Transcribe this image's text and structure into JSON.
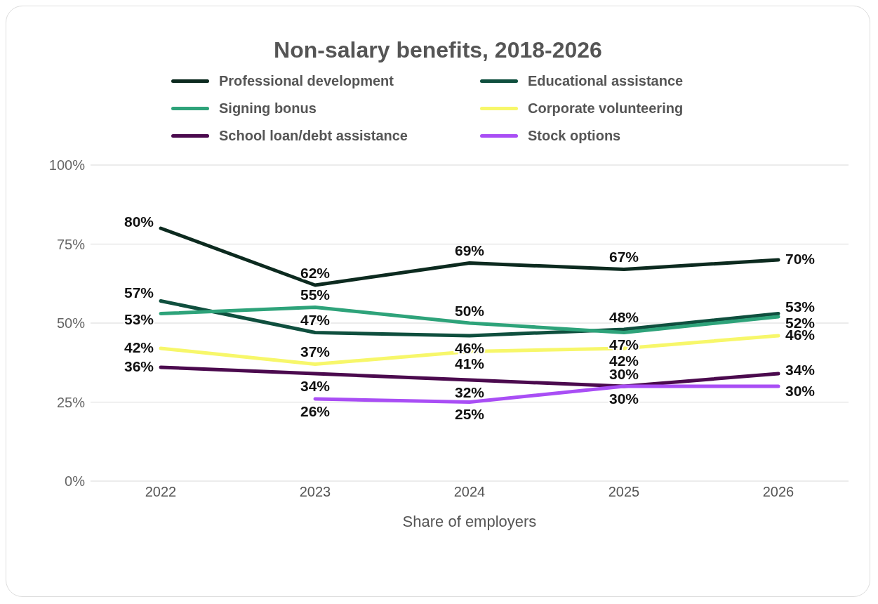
{
  "chart_data": {
    "type": "line",
    "title": "Non-salary benefits, 2018-2026",
    "xlabel": "Share of employers",
    "categories": [
      "2022",
      "2023",
      "2024",
      "2025",
      "2026"
    ],
    "ylim": [
      0,
      100
    ],
    "yticks": [
      {
        "value": 0,
        "label": "0%"
      },
      {
        "value": 25,
        "label": "25%"
      },
      {
        "value": 50,
        "label": "50%"
      },
      {
        "value": 75,
        "label": "75%"
      },
      {
        "value": 100,
        "label": "100%"
      }
    ],
    "grid": "y",
    "legend": "top",
    "marker": "none",
    "line_style": "solid",
    "series": [
      {
        "name": "Professional development",
        "color": "#0c2a1f",
        "values": [
          80,
          62,
          69,
          67,
          70
        ],
        "value_labels": [
          "80%",
          "62%",
          "69%",
          "67%",
          "70%"
        ]
      },
      {
        "name": "Educational assistance",
        "color": "#0f4f3e",
        "values": [
          57,
          47,
          46,
          48,
          53
        ],
        "value_labels": [
          "57%",
          "47%",
          "46%",
          "48%",
          "53%"
        ]
      },
      {
        "name": "Signing bonus",
        "color": "#2ea37a",
        "values": [
          53,
          55,
          50,
          47,
          52
        ],
        "value_labels": [
          "53%",
          "55%",
          "50%",
          "47%",
          "52%"
        ]
      },
      {
        "name": "Corporate volunteering",
        "color": "#f7f76a",
        "values": [
          42,
          37,
          41,
          42,
          46
        ],
        "value_labels": [
          "42%",
          "37%",
          "41%",
          "42%",
          "46%"
        ]
      },
      {
        "name": "School loan/debt assistance",
        "color": "#4b0a4e",
        "values": [
          36,
          34,
          32,
          30,
          34
        ],
        "value_labels": [
          "36%",
          "34%",
          "32%",
          "30%",
          "34%"
        ]
      },
      {
        "name": "Stock options",
        "color": "#a94ef5",
        "values": [
          null,
          26,
          25,
          30,
          30
        ],
        "value_labels": [
          null,
          "26%",
          "25%",
          "30%",
          "30%"
        ]
      }
    ]
  }
}
